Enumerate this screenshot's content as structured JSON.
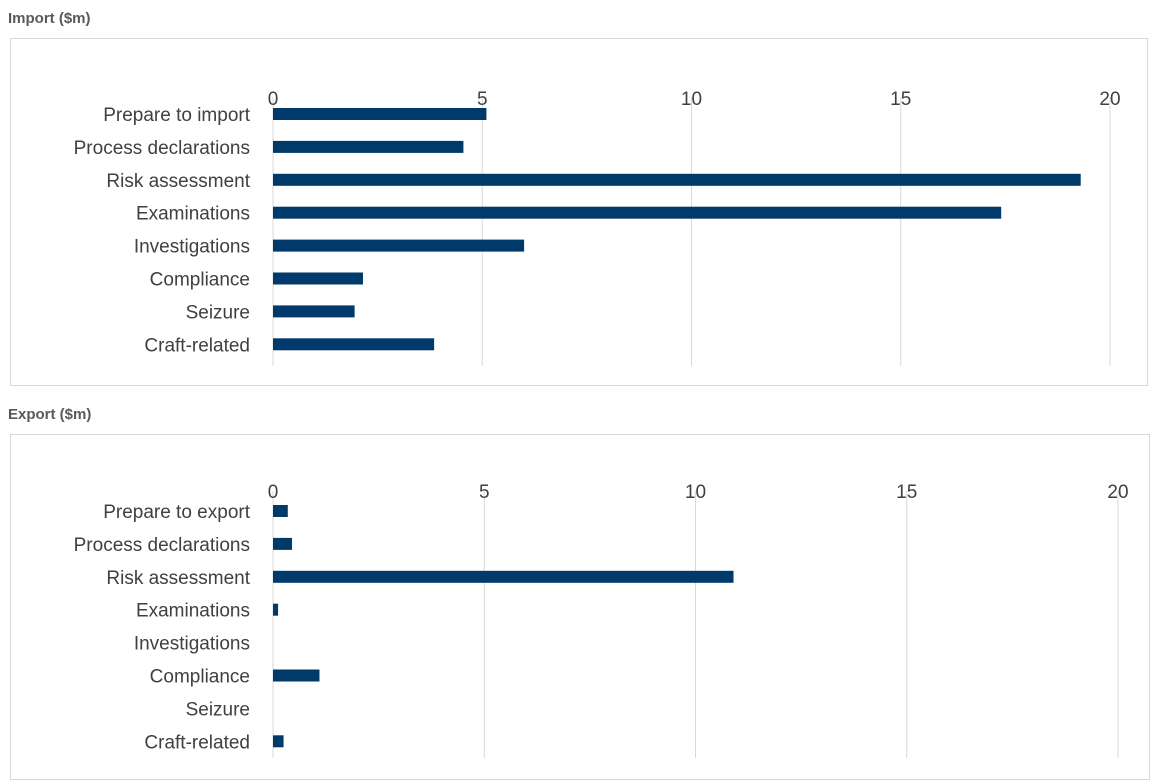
{
  "colors": {
    "bar": "#003a6b",
    "grid": "#d9d9d9",
    "text": "#404040",
    "title": "#595959"
  },
  "chart_data": [
    {
      "type": "bar",
      "orientation": "horizontal",
      "title": "Import ($m)",
      "xticks": [
        "0",
        "5",
        "10",
        "15",
        "20"
      ],
      "xlim": [
        0,
        20
      ],
      "grid": true,
      "categories": [
        "Prepare to import",
        "Process declarations",
        "Risk assessment",
        "Examinations",
        "Investigations",
        "Compliance",
        "Seizure",
        "Craft-related"
      ],
      "values": [
        5.1,
        4.55,
        19.3,
        17.4,
        6.0,
        2.15,
        1.95,
        3.85
      ]
    },
    {
      "type": "bar",
      "orientation": "horizontal",
      "title": "Export ($m)",
      "xticks": [
        "0",
        "5",
        "10",
        "15",
        "20"
      ],
      "xlim": [
        0,
        20
      ],
      "grid": true,
      "categories": [
        "Prepare to export",
        "Process declarations",
        "Risk assessment",
        "Examinations",
        "Investigations",
        "Compliance",
        "Seizure",
        "Craft-related"
      ],
      "values": [
        0.35,
        0.45,
        10.9,
        0.12,
        0,
        1.1,
        0,
        0.25
      ]
    }
  ]
}
